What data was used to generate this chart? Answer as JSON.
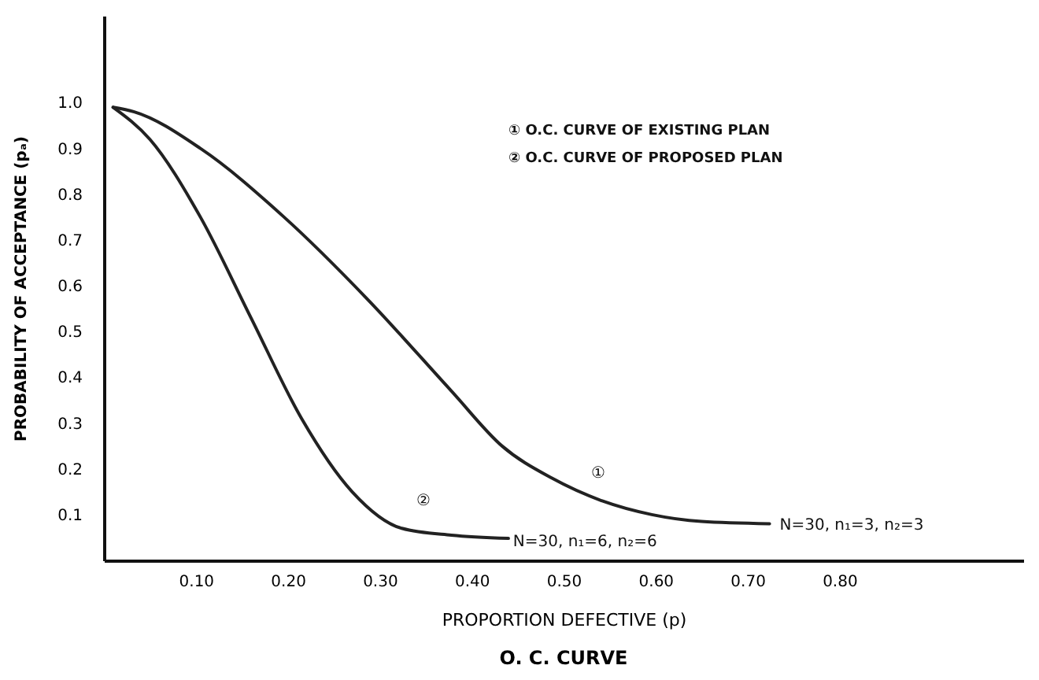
{
  "chart_data": {
    "type": "line",
    "title": "O. C. CURVE",
    "xlabel": "PROPORTION DEFECTIVE (p)",
    "ylabel": "PROBABILITY OF ACCEPTANCE (pₐ)",
    "xlim": [
      0,
      1.0
    ],
    "ylim": [
      0,
      1.19
    ],
    "xticks": [
      {
        "value": 0.1,
        "label": "0.10"
      },
      {
        "value": 0.2,
        "label": "0.20"
      },
      {
        "value": 0.3,
        "label": "0.30"
      },
      {
        "value": 0.4,
        "label": "0.40"
      },
      {
        "value": 0.5,
        "label": "0.50"
      },
      {
        "value": 0.6,
        "label": "0.60"
      },
      {
        "value": 0.7,
        "label": "0.70"
      },
      {
        "value": 0.8,
        "label": "0.80"
      }
    ],
    "yticks": [
      0.1,
      0.2,
      0.3,
      0.4,
      0.5,
      0.6,
      0.7,
      0.8,
      0.9,
      {
        "value": 1.0,
        "label": "1.0"
      }
    ],
    "grid": false,
    "marker": "none",
    "line_style": "solid",
    "series": [
      {
        "color": "#222222",
        "x": [
          0.01,
          0.033,
          0.105,
          0.196,
          0.287,
          0.378,
          0.433,
          0.487,
          0.542,
          0.596,
          0.65,
          0.724
        ],
        "values": [
          0.99,
          0.98,
          0.9,
          0.75,
          0.57,
          0.37,
          0.25,
          0.18,
          0.13,
          0.1,
          0.085,
          0.08
        ]
      },
      {
        "color": "#222222",
        "x": [
          0.01,
          0.05,
          0.105,
          0.16,
          0.215,
          0.27,
          0.324,
          0.378,
          0.44
        ],
        "values": [
          0.99,
          0.92,
          0.75,
          0.53,
          0.31,
          0.15,
          0.07,
          0.055,
          0.048
        ]
      }
    ],
    "annotations": [
      "①",
      "②",
      "N=30, n₁=3, n₂=3",
      "N=30, n₁=6, n₂=6",
      "① O.C. CURVE OF EXISTING PLAN",
      "② O.C. CURVE OF PROPOSED PLAN"
    ]
  }
}
